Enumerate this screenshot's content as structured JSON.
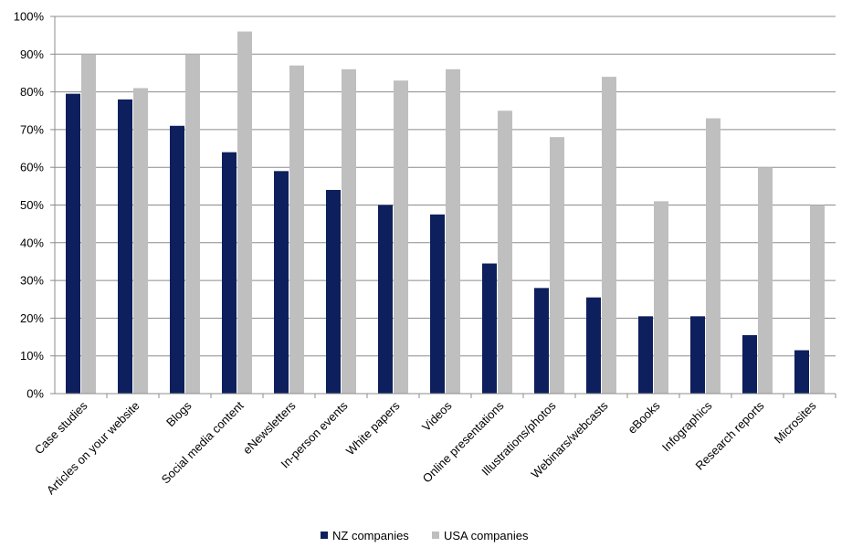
{
  "chart_data": {
    "type": "bar",
    "categories": [
      "Case studies",
      "Articles on your website",
      "Blogs",
      "Social media content",
      "eNewsletters",
      "In-person events",
      "White papers",
      "Videos",
      "Online presentations",
      "Illustrations/photos",
      "Webinars/webcasts",
      "eBooks",
      "Infographics",
      "Research reports",
      "Microsites"
    ],
    "series": [
      {
        "name": "NZ companies",
        "color": "#0d1f5c",
        "values": [
          79.5,
          78,
          71,
          64,
          59,
          54,
          50,
          47.5,
          34.5,
          28,
          25.5,
          20.5,
          20.5,
          15.5,
          11.5
        ]
      },
      {
        "name": "USA companies",
        "color": "#bfbfbf",
        "values": [
          90,
          81,
          90,
          96,
          87,
          86,
          83,
          86,
          75,
          68,
          84,
          51,
          73,
          60,
          50
        ]
      }
    ],
    "y_ticks": [
      "0%",
      "10%",
      "20%",
      "30%",
      "40%",
      "50%",
      "60%",
      "70%",
      "80%",
      "90%",
      "100%"
    ],
    "ylim": [
      0,
      100
    ],
    "grid": true,
    "legend_position": "bottom"
  }
}
